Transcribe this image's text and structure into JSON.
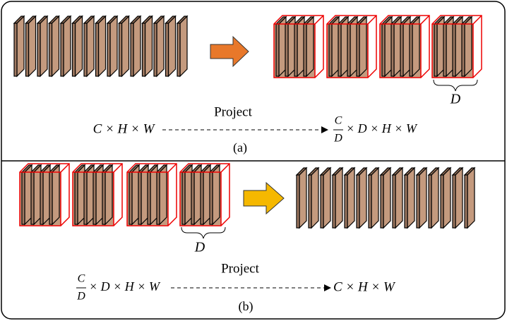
{
  "panel_a": {
    "caption": "(a)",
    "label": "Project",
    "input": "C × H × W",
    "output": {
      "numerator": "C",
      "denominator": "D",
      "rest": "× D × H × W"
    },
    "group_size": "D"
  },
  "panel_b": {
    "caption": "(b)",
    "label": "Project",
    "input": {
      "numerator": "C",
      "denominator": "D",
      "rest": "× D × H × W"
    },
    "output": "C × H × W",
    "group_size": "D"
  }
}
